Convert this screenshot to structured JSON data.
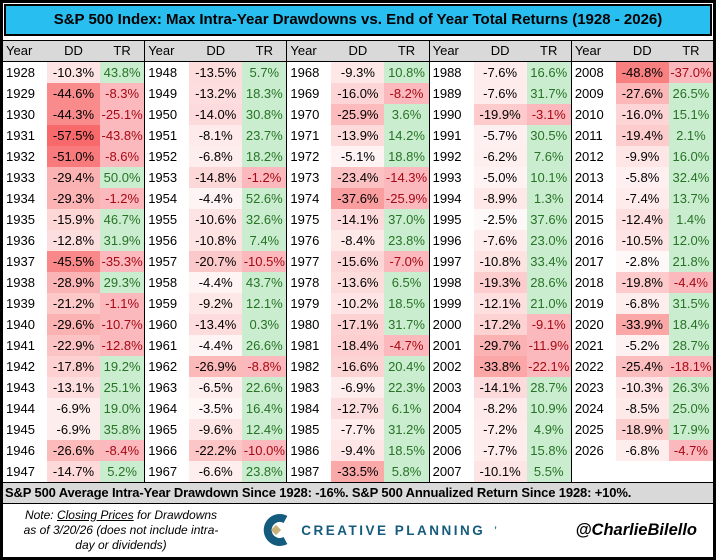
{
  "chart_data": {
    "type": "table",
    "title": "S&P 500 Index: Max Intra-Year Drawdowns vs. End of Year Total Returns (1928 - 2026)",
    "headers": [
      "Year",
      "DD",
      "TR"
    ],
    "groups": [
      [
        [
          "1928",
          "-10.3%",
          "43.8%"
        ],
        [
          "1929",
          "-44.6%",
          "-8.3%"
        ],
        [
          "1930",
          "-44.3%",
          "-25.1%"
        ],
        [
          "1931",
          "-57.5%",
          "-43.8%"
        ],
        [
          "1932",
          "-51.0%",
          "-8.6%"
        ],
        [
          "1933",
          "-29.4%",
          "50.0%"
        ],
        [
          "1934",
          "-29.3%",
          "-1.2%"
        ],
        [
          "1935",
          "-15.9%",
          "46.7%"
        ],
        [
          "1936",
          "-12.8%",
          "31.9%"
        ],
        [
          "1937",
          "-45.5%",
          "-35.3%"
        ],
        [
          "1938",
          "-28.9%",
          "29.3%"
        ],
        [
          "1939",
          "-21.2%",
          "-1.1%"
        ],
        [
          "1940",
          "-29.6%",
          "-10.7%"
        ],
        [
          "1941",
          "-22.9%",
          "-12.8%"
        ],
        [
          "1942",
          "-17.8%",
          "19.2%"
        ],
        [
          "1943",
          "-13.1%",
          "25.1%"
        ],
        [
          "1944",
          "-6.9%",
          "19.0%"
        ],
        [
          "1945",
          "-6.9%",
          "35.8%"
        ],
        [
          "1946",
          "-26.6%",
          "-8.4%"
        ],
        [
          "1947",
          "-14.7%",
          "5.2%"
        ]
      ],
      [
        [
          "1948",
          "-13.5%",
          "5.7%"
        ],
        [
          "1949",
          "-13.2%",
          "18.3%"
        ],
        [
          "1950",
          "-14.0%",
          "30.8%"
        ],
        [
          "1951",
          "-8.1%",
          "23.7%"
        ],
        [
          "1952",
          "-6.8%",
          "18.2%"
        ],
        [
          "1953",
          "-14.8%",
          "-1.2%"
        ],
        [
          "1954",
          "-4.4%",
          "52.6%"
        ],
        [
          "1955",
          "-10.6%",
          "32.6%"
        ],
        [
          "1956",
          "-10.8%",
          "7.4%"
        ],
        [
          "1957",
          "-20.7%",
          "-10.5%"
        ],
        [
          "1958",
          "-4.4%",
          "43.7%"
        ],
        [
          "1959",
          "-9.2%",
          "12.1%"
        ],
        [
          "1960",
          "-13.4%",
          "0.3%"
        ],
        [
          "1961",
          "-4.4%",
          "26.6%"
        ],
        [
          "1962",
          "-26.9%",
          "-8.8%"
        ],
        [
          "1963",
          "-6.5%",
          "22.6%"
        ],
        [
          "1964",
          "-3.5%",
          "16.4%"
        ],
        [
          "1965",
          "-9.6%",
          "12.4%"
        ],
        [
          "1966",
          "-22.2%",
          "-10.0%"
        ],
        [
          "1967",
          "-6.6%",
          "23.8%"
        ]
      ],
      [
        [
          "1968",
          "-9.3%",
          "10.8%"
        ],
        [
          "1969",
          "-16.0%",
          "-8.2%"
        ],
        [
          "1970",
          "-25.9%",
          "3.6%"
        ],
        [
          "1971",
          "-13.9%",
          "14.2%"
        ],
        [
          "1972",
          "-5.1%",
          "18.8%"
        ],
        [
          "1973",
          "-23.4%",
          "-14.3%"
        ],
        [
          "1974",
          "-37.6%",
          "-25.9%"
        ],
        [
          "1975",
          "-14.1%",
          "37.0%"
        ],
        [
          "1976",
          "-8.4%",
          "23.8%"
        ],
        [
          "1977",
          "-15.6%",
          "-7.0%"
        ],
        [
          "1978",
          "-13.6%",
          "6.5%"
        ],
        [
          "1979",
          "-10.2%",
          "18.5%"
        ],
        [
          "1980",
          "-17.1%",
          "31.7%"
        ],
        [
          "1981",
          "-18.4%",
          "-4.7%"
        ],
        [
          "1982",
          "-16.6%",
          "20.4%"
        ],
        [
          "1983",
          "-6.9%",
          "22.3%"
        ],
        [
          "1984",
          "-12.7%",
          "6.1%"
        ],
        [
          "1985",
          "-7.7%",
          "31.2%"
        ],
        [
          "1986",
          "-9.4%",
          "18.5%"
        ],
        [
          "1987",
          "-33.5%",
          "5.8%"
        ]
      ],
      [
        [
          "1988",
          "-7.6%",
          "16.6%"
        ],
        [
          "1989",
          "-7.6%",
          "31.7%"
        ],
        [
          "1990",
          "-19.9%",
          "-3.1%"
        ],
        [
          "1991",
          "-5.7%",
          "30.5%"
        ],
        [
          "1992",
          "-6.2%",
          "7.6%"
        ],
        [
          "1993",
          "-5.0%",
          "10.1%"
        ],
        [
          "1994",
          "-8.9%",
          "1.3%"
        ],
        [
          "1995",
          "-2.5%",
          "37.6%"
        ],
        [
          "1996",
          "-7.6%",
          "23.0%"
        ],
        [
          "1997",
          "-10.8%",
          "33.4%"
        ],
        [
          "1998",
          "-19.3%",
          "28.6%"
        ],
        [
          "1999",
          "-12.1%",
          "21.0%"
        ],
        [
          "2000",
          "-17.2%",
          "-9.1%"
        ],
        [
          "2001",
          "-29.7%",
          "-11.9%"
        ],
        [
          "2002",
          "-33.8%",
          "-22.1%"
        ],
        [
          "2003",
          "-14.1%",
          "28.7%"
        ],
        [
          "2004",
          "-8.2%",
          "10.9%"
        ],
        [
          "2005",
          "-7.2%",
          "4.9%"
        ],
        [
          "2006",
          "-7.7%",
          "15.8%"
        ],
        [
          "2007",
          "-10.1%",
          "5.5%"
        ]
      ],
      [
        [
          "2008",
          "-48.8%",
          "-37.0%"
        ],
        [
          "2009",
          "-27.6%",
          "26.5%"
        ],
        [
          "2010",
          "-16.0%",
          "15.1%"
        ],
        [
          "2011",
          "-19.4%",
          "2.1%"
        ],
        [
          "2012",
          "-9.9%",
          "16.0%"
        ],
        [
          "2013",
          "-5.8%",
          "32.4%"
        ],
        [
          "2014",
          "-7.4%",
          "13.7%"
        ],
        [
          "2015",
          "-12.4%",
          "1.4%"
        ],
        [
          "2016",
          "-10.5%",
          "12.0%"
        ],
        [
          "2017",
          "-2.8%",
          "21.8%"
        ],
        [
          "2018",
          "-19.8%",
          "-4.4%"
        ],
        [
          "2019",
          "-6.8%",
          "31.5%"
        ],
        [
          "2020",
          "-33.9%",
          "18.4%"
        ],
        [
          "2021",
          "-5.2%",
          "28.7%"
        ],
        [
          "2022",
          "-25.4%",
          "-18.1%"
        ],
        [
          "2023",
          "-10.3%",
          "26.3%"
        ],
        [
          "2024",
          "-8.5%",
          "25.0%"
        ],
        [
          "2025",
          "-18.9%",
          "17.9%"
        ],
        [
          "2026",
          "-6.8%",
          "-4.7%"
        ]
      ]
    ],
    "annotation": "S&P 500 Average Intra-Year Drawdown Since 1928: -16%. S&P 500 Annualized Return Since 1928: +10%.",
    "dd_color_scale": {
      "from": "#FFFFFF",
      "to": "#F8696B",
      "max_abs_pct": 57.5
    },
    "layout": {
      "column_groups": 5,
      "rows_per_group": 20,
      "grid": "off",
      "legend": "none"
    }
  },
  "footer": {
    "note_prefix": "Note: ",
    "note_underline": "Closing Prices",
    "note_line1_rest": " for Drawdowns",
    "note_line2": "as of 3/20/26 (does not include intra-",
    "note_line3": "day or dividends)",
    "logo_text": "CREATIVE PLANNING",
    "logo_mark": "’",
    "handle": "@CharlieBilello"
  },
  "icons": {
    "logo_icon": "creative-planning-c-diamond-icon"
  },
  "colors": {
    "title_bg": "#29BEF0",
    "header_bg": "#D9D9D9",
    "summary_bg": "#D9D9D9",
    "dd_scale_max": "#F8696B",
    "tr_positive_bg": "#CBEDCF",
    "tr_positive_text": "#267326",
    "tr_negative_bg": "#FBB8BD",
    "tr_negative_text": "#A50914",
    "logo_teal": "#155B7D",
    "logo_gold": "#C8B179"
  }
}
